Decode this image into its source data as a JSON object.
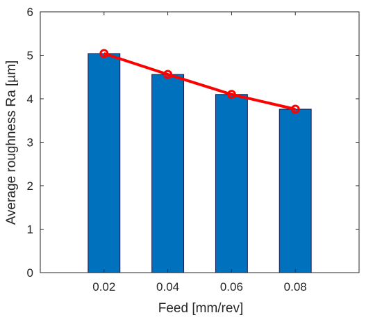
{
  "chart_data": {
    "type": "bar",
    "categories": [
      "0.02",
      "0.04",
      "0.06",
      "0.08"
    ],
    "x": [
      0.02,
      0.04,
      0.06,
      0.08
    ],
    "values": [
      5.04,
      4.56,
      4.1,
      3.76
    ],
    "line_values": [
      5.04,
      4.56,
      4.1,
      3.76
    ],
    "xlabel": "Feed [mm/rev]",
    "ylabel": "Average roughness Ra [µm]",
    "xlim": [
      0.0,
      0.1
    ],
    "ylim": [
      0,
      6
    ],
    "yticks": [
      "0",
      "1",
      "2",
      "3",
      "4",
      "5",
      "6"
    ],
    "grid": false,
    "bar_color": "#0072BD",
    "bar_edge_color": "#1a1a4a",
    "line_color": "#FF0000"
  }
}
